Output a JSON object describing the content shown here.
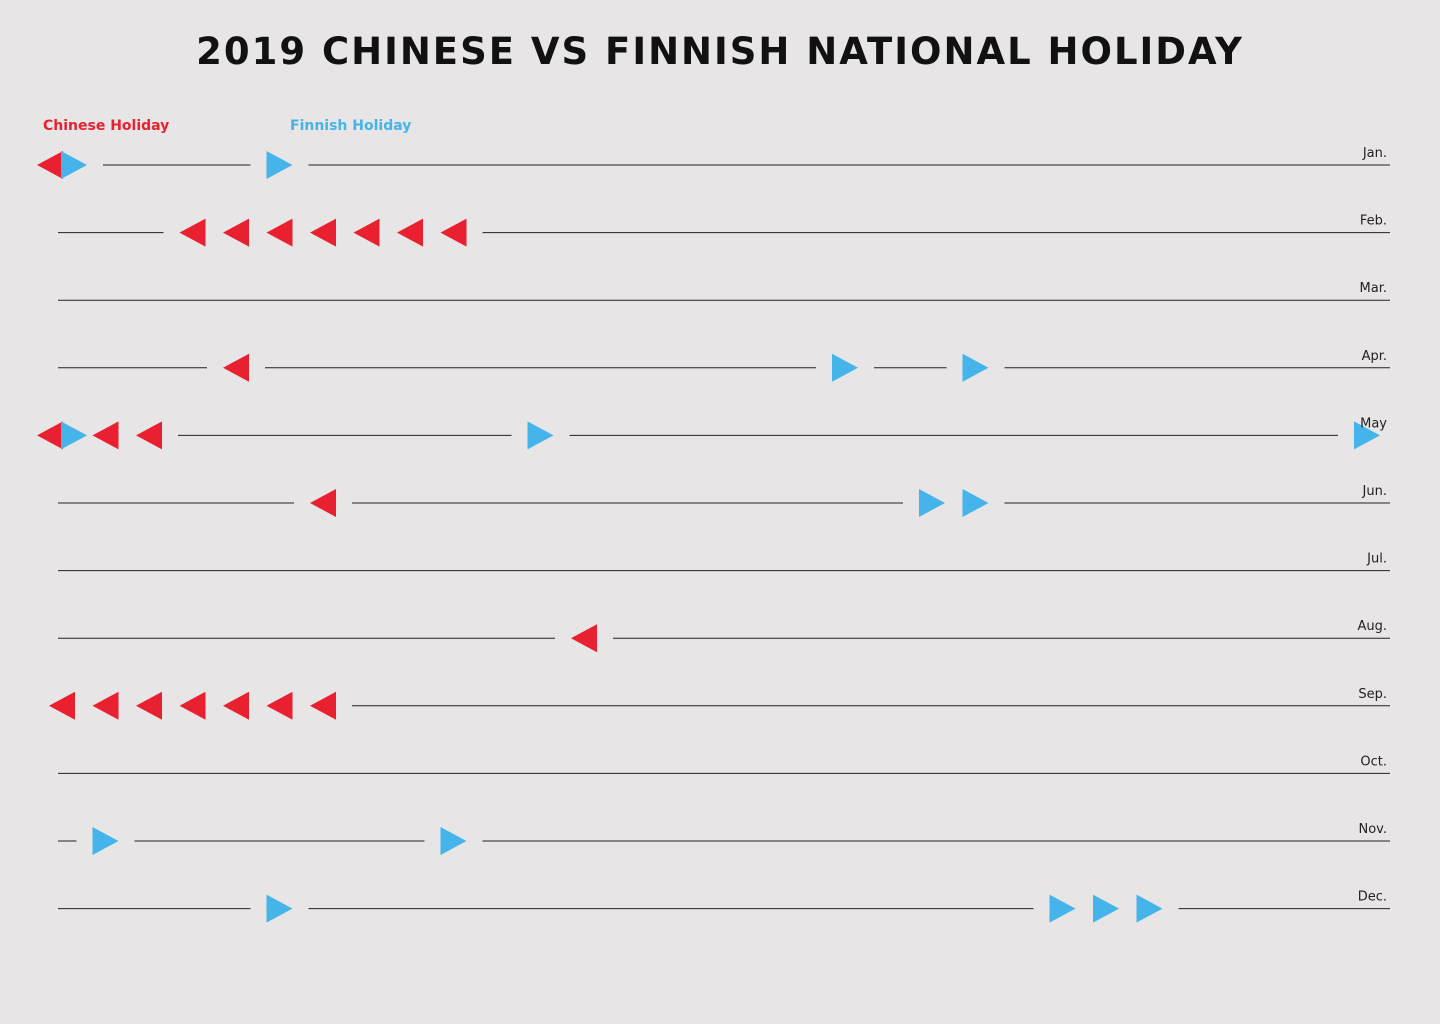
{
  "chart_data": {
    "type": "timeline",
    "title": "2019 CHINESE VS FINNISH NATIONAL HOLIDAY",
    "colors": {
      "chinese": "#e8202f",
      "finnish": "#45b4ea",
      "line": "#222222",
      "background": "#e7e5e6"
    },
    "legend": [
      {
        "key": "chinese",
        "label": "Chinese Holiday"
      },
      {
        "key": "finnish",
        "label": "Finnish Holiday"
      }
    ],
    "months": [
      {
        "label": "Jan.",
        "days": 31,
        "chinese": [
          1
        ],
        "finnish": [
          1,
          6
        ]
      },
      {
        "label": "Feb.",
        "days": 28,
        "chinese": [
          4,
          5,
          6,
          7,
          8,
          9,
          10
        ],
        "finnish": []
      },
      {
        "label": "Mar.",
        "days": 31,
        "chinese": [],
        "finnish": []
      },
      {
        "label": "Apr.",
        "days": 30,
        "chinese": [
          5
        ],
        "finnish": [
          19,
          22
        ]
      },
      {
        "label": "May",
        "days": 31,
        "chinese": [
          1,
          2,
          3
        ],
        "finnish": [
          1,
          12,
          31
        ]
      },
      {
        "label": "Jun.",
        "days": 30,
        "chinese": [
          7
        ],
        "finnish": [
          21,
          22
        ]
      },
      {
        "label": "Jul.",
        "days": 31,
        "chinese": [],
        "finnish": []
      },
      {
        "label": "Aug.",
        "days": 31,
        "chinese": [
          13
        ],
        "finnish": []
      },
      {
        "label": "Sep.",
        "days": 30,
        "chinese": [
          1,
          2,
          3,
          4,
          5,
          6,
          7
        ],
        "finnish": []
      },
      {
        "label": "Oct.",
        "days": 31,
        "chinese": [],
        "finnish": []
      },
      {
        "label": "Nov.",
        "days": 30,
        "chinese": [],
        "finnish": [
          2,
          10
        ]
      },
      {
        "label": "Dec.",
        "days": 31,
        "chinese": [],
        "finnish": [
          6,
          24,
          25,
          26
        ]
      }
    ]
  }
}
